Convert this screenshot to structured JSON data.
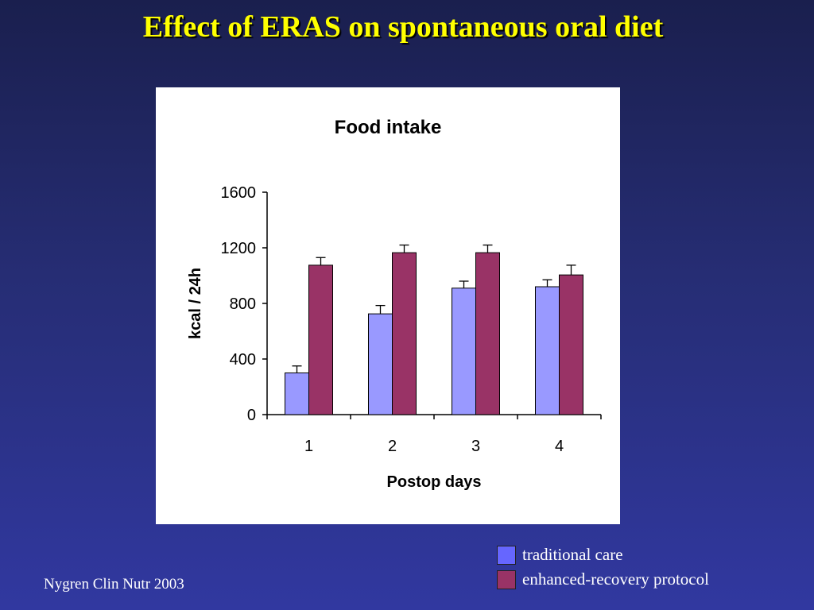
{
  "slide": {
    "title": "Effect of ERAS on spontaneous oral diet",
    "citation": "Nygren Clin Nutr 2003"
  },
  "colors": {
    "traditional": "#9999ff",
    "enhanced": "#993366",
    "legend_traditional": "#6666ff",
    "legend_enhanced": "#993366"
  },
  "chart_data": {
    "type": "bar",
    "title": "Food intake",
    "xlabel": "Postop days",
    "ylabel": "kcal / 24h",
    "categories": [
      "1",
      "2",
      "3",
      "4"
    ],
    "ylim": [
      0,
      1600
    ],
    "yticks": [
      0,
      400,
      800,
      1200,
      1600
    ],
    "series": [
      {
        "name": "traditional care",
        "values": [
          300,
          725,
          910,
          920
        ],
        "error": [
          50,
          60,
          50,
          50
        ]
      },
      {
        "name": "enhanced-recovery protocol",
        "values": [
          1075,
          1165,
          1165,
          1005
        ],
        "error": [
          55,
          55,
          55,
          70
        ]
      }
    ],
    "legend_position": "bottom-right",
    "grid": false,
    "error_bars": true
  }
}
